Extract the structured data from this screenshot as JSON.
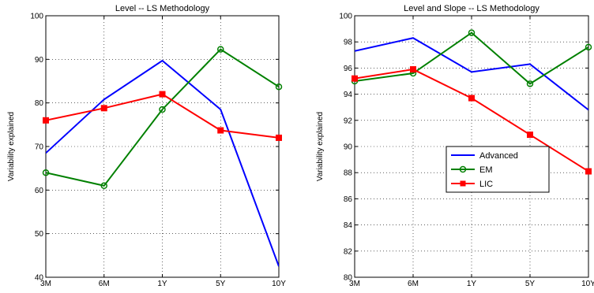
{
  "chart_data": [
    {
      "type": "line",
      "title": "Level -- LS Methodology",
      "xlabel": "",
      "ylabel": "Variability explained",
      "categories": [
        "3M",
        "6M",
        "1Y",
        "5Y",
        "10Y"
      ],
      "ylim": [
        40,
        100
      ],
      "yticks": [
        40,
        50,
        60,
        70,
        80,
        90,
        100
      ],
      "grid": true,
      "legend": null,
      "series": [
        {
          "name": "Advanced",
          "color": "#0000ff",
          "marker": "none",
          "values": [
            68.5,
            80.8,
            89.7,
            78.5,
            42.5
          ]
        },
        {
          "name": "EM",
          "color": "#008000",
          "marker": "circle",
          "values": [
            64.0,
            61.0,
            78.5,
            92.3,
            83.7
          ]
        },
        {
          "name": "LIC",
          "color": "#ff0000",
          "marker": "square",
          "values": [
            76.0,
            78.8,
            82.0,
            73.7,
            72.0
          ]
        }
      ]
    },
    {
      "type": "line",
      "title": "Level and Slope -- LS Methodology",
      "xlabel": "",
      "ylabel": "Variability explained",
      "categories": [
        "3M",
        "6M",
        "1Y",
        "5Y",
        "10Y"
      ],
      "ylim": [
        80,
        100
      ],
      "yticks": [
        80,
        82,
        84,
        86,
        88,
        90,
        92,
        94,
        96,
        98,
        100
      ],
      "grid": true,
      "legend": "center-right",
      "series": [
        {
          "name": "Advanced",
          "color": "#0000ff",
          "marker": "none",
          "values": [
            97.3,
            98.3,
            95.7,
            96.3,
            92.8
          ]
        },
        {
          "name": "EM",
          "color": "#008000",
          "marker": "circle",
          "values": [
            95.0,
            95.6,
            98.7,
            94.8,
            97.6
          ]
        },
        {
          "name": "LIC",
          "color": "#ff0000",
          "marker": "square",
          "values": [
            95.2,
            95.9,
            93.7,
            90.9,
            88.1
          ]
        }
      ]
    }
  ]
}
